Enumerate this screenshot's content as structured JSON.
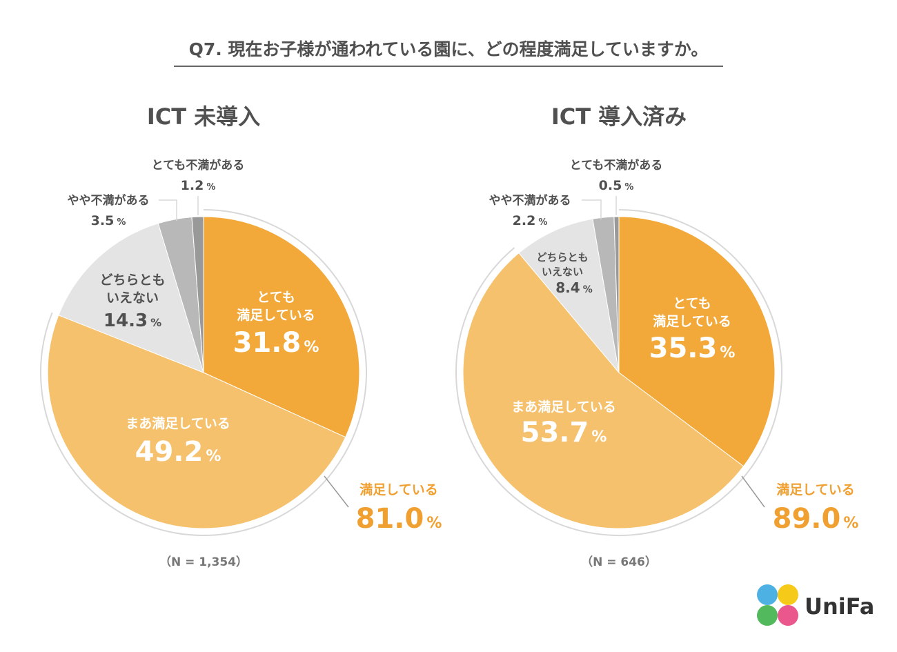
{
  "question": "Q7. 現在お子様が通われている園に、どの程度満足していますか。",
  "colors": {
    "very_satisfied": "#F3A93A",
    "somewhat_satisfied": "#F5C16D",
    "neutral": "#E4E4E4",
    "somewhat_dissatisfied": "#B8B8B8",
    "very_dissatisfied": "#999999",
    "accent_orange": "#F0A030",
    "text_dark": "#505050",
    "title_line": "#666666",
    "outer_ring": "#D8D8D8"
  },
  "percent_sign": "%",
  "logo": {
    "text": "UniFa",
    "dot_colors": [
      "#3BA8E0",
      "#F5C400",
      "#3FB34A",
      "#E8457F"
    ]
  },
  "chart_data": [
    {
      "type": "pie",
      "title": "ICT 未導入",
      "n_label": "（N = 1,354）",
      "series": [
        {
          "key": "very_satisfied",
          "name": "とても満足している",
          "label_lines": [
            "とても",
            "満足している"
          ],
          "value": 31.8,
          "value_label": "31.8"
        },
        {
          "key": "somewhat_satisfied",
          "name": "まあ満足している",
          "label_lines": [
            "まあ満足している"
          ],
          "value": 49.2,
          "value_label": "49.2"
        },
        {
          "key": "neutral",
          "name": "どちらともいえない",
          "label_lines": [
            "どちらとも",
            "いえない"
          ],
          "value": 14.3,
          "value_label": "14.3"
        },
        {
          "key": "somewhat_dissatisfied",
          "name": "やや不満がある",
          "label_lines": [
            "やや不満がある"
          ],
          "value": 3.5,
          "value_label": "3.5"
        },
        {
          "key": "very_dissatisfied",
          "name": "とても不満がある",
          "label_lines": [
            "とても不満がある"
          ],
          "value": 1.2,
          "value_label": "1.2"
        }
      ],
      "satisfied_total": {
        "label": "満足している",
        "value": 81.0,
        "value_label": "81.0"
      }
    },
    {
      "type": "pie",
      "title": "ICT 導入済み",
      "n_label": "（N = 646）",
      "series": [
        {
          "key": "very_satisfied",
          "name": "とても満足している",
          "label_lines": [
            "とても",
            "満足している"
          ],
          "value": 35.3,
          "value_label": "35.3"
        },
        {
          "key": "somewhat_satisfied",
          "name": "まあ満足している",
          "label_lines": [
            "まあ満足している"
          ],
          "value": 53.7,
          "value_label": "53.7"
        },
        {
          "key": "neutral",
          "name": "どちらともいえない",
          "label_lines": [
            "どちらとも",
            "いえない"
          ],
          "value": 8.4,
          "value_label": "8.4"
        },
        {
          "key": "somewhat_dissatisfied",
          "name": "やや不満がある",
          "label_lines": [
            "やや不満がある"
          ],
          "value": 2.2,
          "value_label": "2.2"
        },
        {
          "key": "very_dissatisfied",
          "name": "とても不満がある",
          "label_lines": [
            "とても不満がある"
          ],
          "value": 0.5,
          "value_label": "0.5"
        }
      ],
      "satisfied_total": {
        "label": "満足している",
        "value": 89.0,
        "value_label": "89.0"
      }
    }
  ]
}
